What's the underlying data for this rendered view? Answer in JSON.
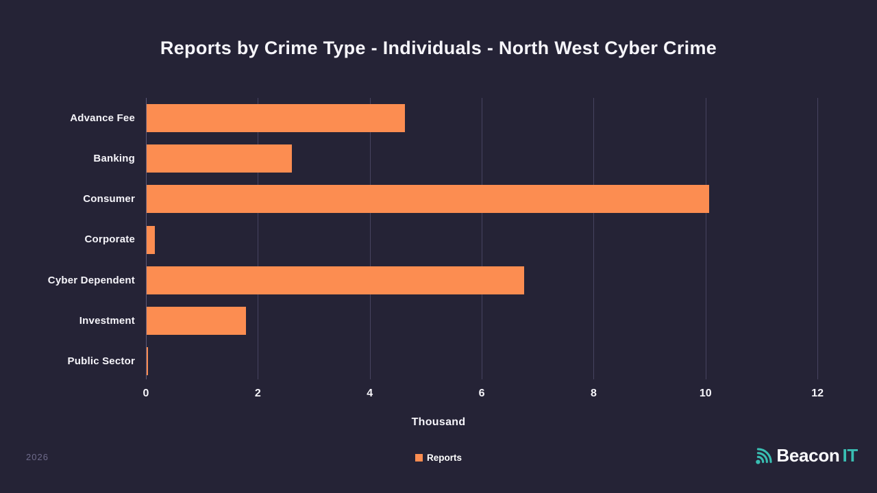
{
  "title": "Reports by Crime Type - Individuals - North West Cyber Crime",
  "footer": {
    "year": "2026"
  },
  "logo": {
    "beacon": "Beacon",
    "it": "IT",
    "icon": "beacon-signal-icon"
  },
  "colors": {
    "background": "#252336",
    "bar": "#FC8D51",
    "gridline": "#474460",
    "axis_line": "#5C5879",
    "text": "#F6F5FA",
    "muted_text": "#6F6C8C",
    "brand_teal": "#39BEB2"
  },
  "chart_data": {
    "type": "bar",
    "orientation": "horizontal",
    "title": "Reports by Crime Type - Individuals - North West Cyber Crime",
    "categories": [
      "Advance Fee",
      "Banking",
      "Consumer",
      "Corporate",
      "Cyber Dependent",
      "Investment",
      "Public Sector"
    ],
    "series": [
      {
        "name": "Reports",
        "values": [
          4.62,
          2.6,
          10.05,
          0.15,
          6.74,
          1.77,
          0.02
        ]
      }
    ],
    "xlabel": "Thousand",
    "ylabel": "",
    "unit": "Thousand",
    "xlim": [
      0,
      12.5
    ],
    "xticks": [
      0,
      2,
      4,
      6,
      8,
      10,
      12
    ],
    "grid": true,
    "legend_position": "bottom"
  }
}
